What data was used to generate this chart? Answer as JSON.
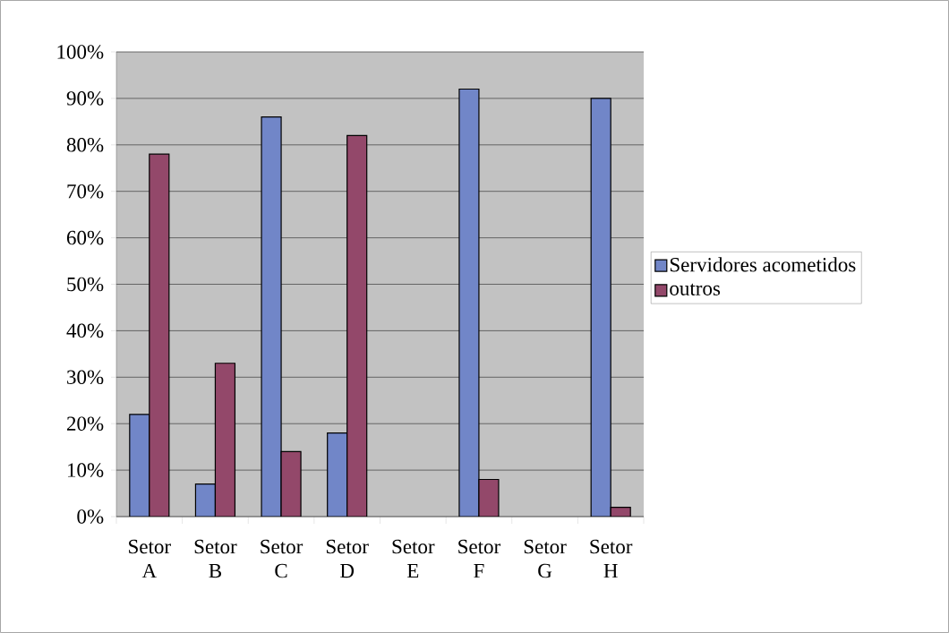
{
  "chart_data": {
    "type": "bar",
    "categories": [
      "Setor A",
      "Setor B",
      "Setor C",
      "Setor D",
      "Setor E",
      "Setor F",
      "Setor G",
      "Setor H"
    ],
    "series": [
      {
        "name": "Servidores acometidos",
        "color": "#7186c8",
        "values": [
          22,
          7,
          86,
          18,
          null,
          92,
          null,
          90
        ]
      },
      {
        "name": "outros",
        "color": "#93486a",
        "values": [
          78,
          33,
          14,
          82,
          null,
          8,
          null,
          2
        ]
      }
    ],
    "ylim": [
      0,
      100
    ],
    "yticks": [
      {
        "value": 0,
        "label": "0%"
      },
      {
        "value": 10,
        "label": "10%"
      },
      {
        "value": 20,
        "label": "20%"
      },
      {
        "value": 30,
        "label": "30%"
      },
      {
        "value": 40,
        "label": "40%"
      },
      {
        "value": 50,
        "label": "50%"
      },
      {
        "value": 60,
        "label": "60%"
      },
      {
        "value": 70,
        "label": "70%"
      },
      {
        "value": 80,
        "label": "80%"
      },
      {
        "value": 90,
        "label": "90%"
      },
      {
        "value": 100,
        "label": "100%"
      }
    ],
    "grid": "y",
    "legend": "right"
  }
}
